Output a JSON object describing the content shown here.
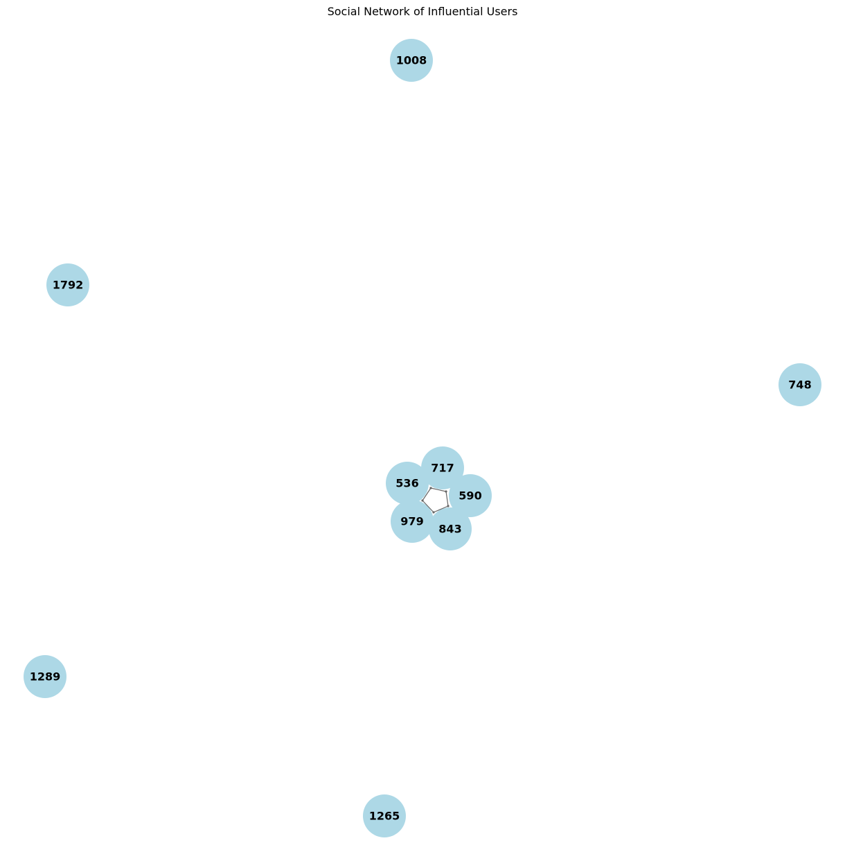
{
  "title": "Social Network of Influential Users",
  "style": {
    "node_color": "#add8e6",
    "edge_color": "#666666",
    "label_color": "#000000"
  },
  "nodes": [
    {
      "id": "1008"
    },
    {
      "id": "1792"
    },
    {
      "id": "748"
    },
    {
      "id": "717"
    },
    {
      "id": "536"
    },
    {
      "id": "590"
    },
    {
      "id": "979"
    },
    {
      "id": "843"
    },
    {
      "id": "1289"
    },
    {
      "id": "1265"
    }
  ],
  "edges": [
    {
      "from": "536",
      "to": "717"
    },
    {
      "from": "717",
      "to": "590"
    },
    {
      "from": "590",
      "to": "843"
    },
    {
      "from": "843",
      "to": "979"
    },
    {
      "from": "979",
      "to": "536"
    }
  ]
}
